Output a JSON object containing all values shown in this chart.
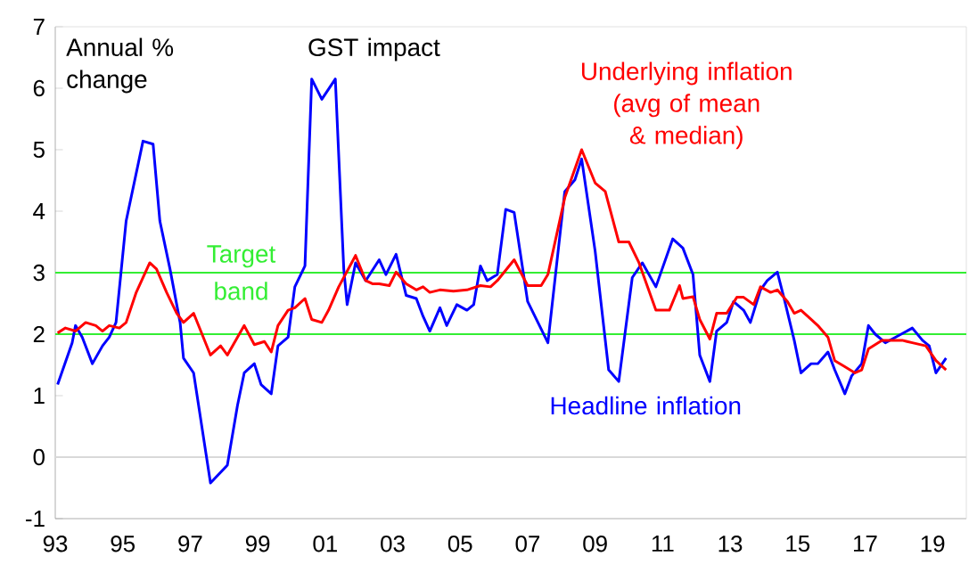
{
  "chart_data": {
    "type": "line",
    "annotations": [
      "Annual % change",
      "GST impact"
    ],
    "xlim": [
      1993,
      2020
    ],
    "xticks": [
      {
        "value": 1993,
        "label": "93"
      },
      {
        "value": 1995,
        "label": "95"
      },
      {
        "value": 1997,
        "label": "97"
      },
      {
        "value": 1999,
        "label": "99"
      },
      {
        "value": 2001,
        "label": "01"
      },
      {
        "value": 2003,
        "label": "03"
      },
      {
        "value": 2005,
        "label": "05"
      },
      {
        "value": 2007,
        "label": "07"
      },
      {
        "value": 2009,
        "label": "09"
      },
      {
        "value": 2011,
        "label": "11"
      },
      {
        "value": 2013,
        "label": "13"
      },
      {
        "value": 2015,
        "label": "15"
      },
      {
        "value": 2017,
        "label": "17"
      },
      {
        "value": 2019,
        "label": "19"
      }
    ],
    "ylim": [
      -1,
      7
    ],
    "yticks": [
      -1,
      0,
      1,
      2,
      3,
      4,
      5,
      6,
      7
    ],
    "ref_lines": [
      {
        "axis": "y",
        "value": 0,
        "label": null,
        "color": "#d9d9d9"
      },
      {
        "axis": "y",
        "value": 2,
        "label": null,
        "color": "#33ee33"
      },
      {
        "axis": "y",
        "value": 3,
        "label": "Target band",
        "color": "#33ee33"
      }
    ],
    "series": [
      {
        "name": "Headline inflation",
        "color": "#0000ff",
        "x": [
          1993.07,
          1993.5,
          1993.6,
          1993.8,
          1994.1,
          1994.4,
          1994.6,
          1994.8,
          1995.1,
          1995.6,
          1995.9,
          1996.1,
          1996.4,
          1996.7,
          1996.8,
          1997.1,
          1997.6,
          1998.1,
          1998.4,
          1998.6,
          1998.9,
          1999.1,
          1999.4,
          1999.6,
          1999.9,
          2000.1,
          2000.4,
          2000.6,
          2000.9,
          2001.3,
          2001.55,
          2001.65,
          2001.9,
          2002.2,
          2002.6,
          2002.8,
          2003.1,
          2003.4,
          2003.7,
          2003.9,
          2004.1,
          2004.4,
          2004.6,
          2004.9,
          2005.2,
          2005.4,
          2005.6,
          2005.8,
          2006.1,
          2006.35,
          2006.6,
          2007.0,
          2007.6,
          2008.1,
          2008.4,
          2008.6,
          2009.0,
          2009.4,
          2009.7,
          2010.1,
          2010.4,
          2010.8,
          2011.3,
          2011.6,
          2011.9,
          2012.1,
          2012.4,
          2012.6,
          2012.9,
          2013.1,
          2013.4,
          2013.6,
          2013.9,
          2014.1,
          2014.4,
          2014.6,
          2014.9,
          2015.1,
          2015.4,
          2015.6,
          2015.9,
          2016.1,
          2016.4,
          2016.6,
          2016.9,
          2017.1,
          2017.3,
          2017.6,
          2017.9,
          2018.4,
          2018.7,
          2018.9,
          2019.1,
          2019.4
        ],
        "values": [
          1.18,
          1.86,
          2.14,
          1.95,
          1.52,
          1.81,
          1.95,
          2.19,
          3.84,
          5.14,
          5.09,
          3.84,
          3.06,
          2.19,
          1.61,
          1.37,
          -0.42,
          -0.13,
          0.84,
          1.37,
          1.52,
          1.18,
          1.03,
          1.81,
          1.95,
          2.77,
          3.11,
          6.15,
          5.82,
          6.15,
          3.06,
          2.48,
          3.16,
          2.87,
          3.21,
          2.97,
          3.3,
          2.63,
          2.58,
          2.29,
          2.05,
          2.43,
          2.14,
          2.48,
          2.39,
          2.48,
          3.11,
          2.87,
          2.97,
          4.03,
          3.98,
          2.53,
          1.86,
          4.32,
          4.51,
          4.85,
          3.35,
          1.42,
          1.23,
          2.92,
          3.16,
          2.77,
          3.55,
          3.4,
          2.97,
          1.66,
          1.23,
          2.05,
          2.19,
          2.53,
          2.39,
          2.19,
          2.72,
          2.87,
          3.01,
          2.58,
          1.9,
          1.37,
          1.52,
          1.52,
          1.71,
          1.42,
          1.03,
          1.32,
          1.52,
          2.14,
          2.0,
          1.86,
          1.95,
          2.1,
          1.9,
          1.81,
          1.37,
          1.61
        ]
      },
      {
        "name": "Underlying inflation (avg of mean & median)",
        "color": "#ff0000",
        "x": [
          1993.07,
          1993.3,
          1993.6,
          1993.9,
          1994.2,
          1994.4,
          1994.6,
          1994.9,
          1995.1,
          1995.4,
          1995.8,
          1996.0,
          1996.3,
          1996.6,
          1996.8,
          1997.1,
          1997.6,
          1997.9,
          1998.1,
          1998.4,
          1998.6,
          1998.9,
          1999.2,
          1999.4,
          1999.6,
          1999.9,
          2000.1,
          2000.4,
          2000.6,
          2000.9,
          2001.1,
          2001.4,
          2001.9,
          2002.2,
          2002.4,
          2002.6,
          2002.9,
          2003.1,
          2003.4,
          2003.7,
          2003.9,
          2004.1,
          2004.4,
          2004.8,
          2005.2,
          2005.6,
          2005.9,
          2006.1,
          2006.6,
          2007.0,
          2007.4,
          2007.6,
          2008.1,
          2008.6,
          2009.0,
          2009.3,
          2009.7,
          2010.0,
          2010.3,
          2010.8,
          2011.2,
          2011.5,
          2011.6,
          2011.9,
          2012.1,
          2012.4,
          2012.6,
          2012.9,
          2013.2,
          2013.4,
          2013.7,
          2013.9,
          2014.2,
          2014.4,
          2014.7,
          2014.9,
          2015.1,
          2015.4,
          2015.6,
          2015.9,
          2016.1,
          2016.4,
          2016.7,
          2016.9,
          2017.1,
          2017.5,
          2018.1,
          2018.4,
          2018.8,
          2019.1,
          2019.4
        ],
        "values": [
          2.02,
          2.1,
          2.05,
          2.19,
          2.14,
          2.05,
          2.14,
          2.1,
          2.19,
          2.68,
          3.16,
          3.06,
          2.68,
          2.34,
          2.19,
          2.34,
          1.66,
          1.81,
          1.66,
          1.95,
          2.14,
          1.83,
          1.88,
          1.71,
          2.14,
          2.39,
          2.43,
          2.58,
          2.24,
          2.19,
          2.39,
          2.77,
          3.28,
          2.87,
          2.82,
          2.82,
          2.79,
          3.01,
          2.82,
          2.72,
          2.77,
          2.68,
          2.72,
          2.7,
          2.72,
          2.79,
          2.77,
          2.87,
          3.21,
          2.79,
          2.79,
          2.97,
          4.22,
          5.0,
          4.46,
          4.32,
          3.5,
          3.5,
          3.16,
          2.39,
          2.39,
          2.79,
          2.58,
          2.61,
          2.24,
          1.92,
          2.34,
          2.34,
          2.6,
          2.6,
          2.48,
          2.77,
          2.68,
          2.72,
          2.53,
          2.34,
          2.39,
          2.24,
          2.14,
          1.95,
          1.57,
          1.47,
          1.37,
          1.42,
          1.76,
          1.9,
          1.9,
          1.86,
          1.81,
          1.57,
          1.42
        ]
      }
    ],
    "grid": false,
    "marker": "none",
    "line_style": "solid"
  }
}
